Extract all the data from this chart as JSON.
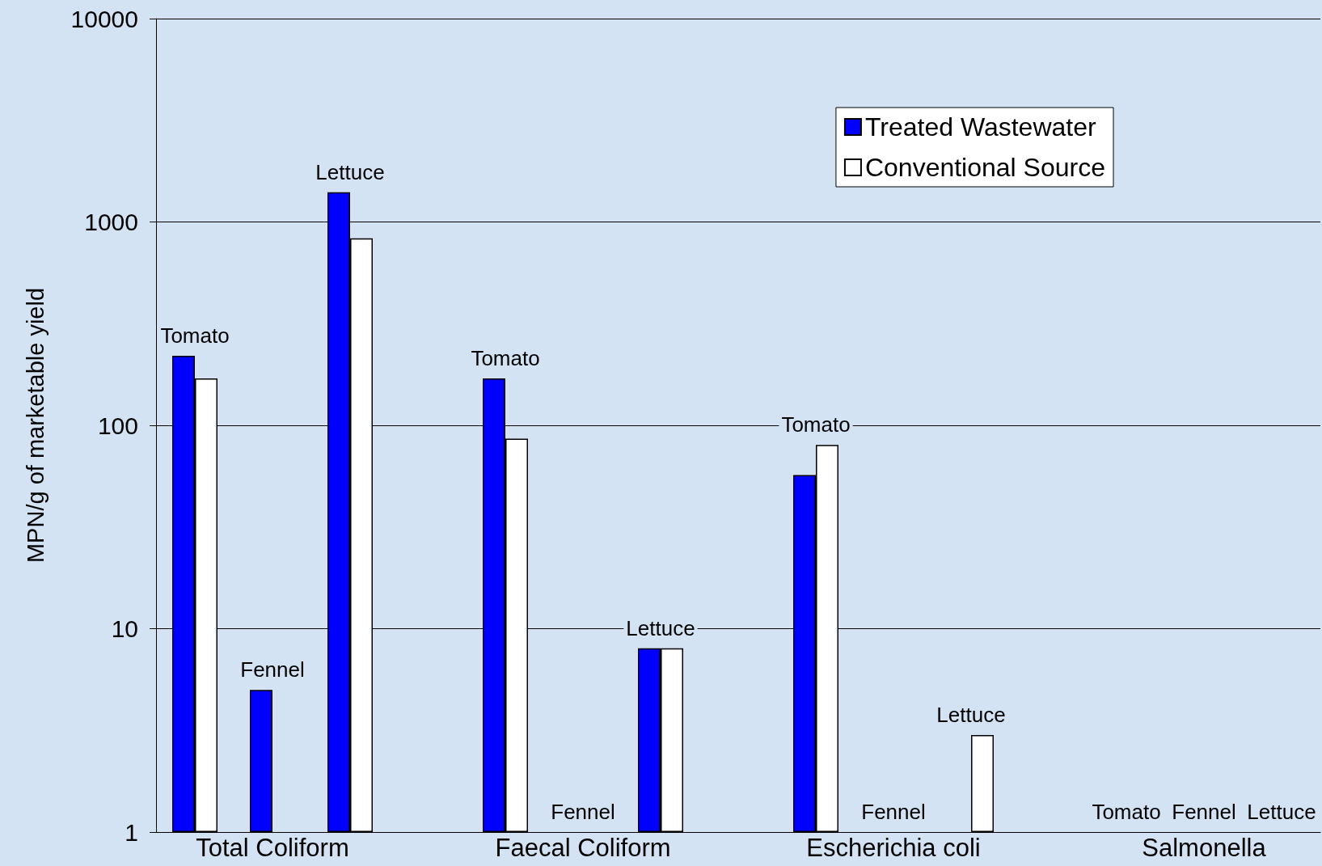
{
  "chart_data": {
    "type": "bar",
    "ylabel": "MPN/g of marketable yield",
    "categories": [
      "Tomato",
      "Fennel",
      "Lettuce",
      null,
      "Tomato",
      "Fennel",
      "Lettuce",
      null,
      "Tomato",
      "Fennel",
      "Lettuce",
      null,
      "Tomato",
      "Fennel",
      "Lettuce"
    ],
    "series": [
      {
        "name": "Treated Wastewater",
        "color": "#0000ff",
        "values": [
          220,
          5,
          1400,
          null,
          170,
          null,
          8,
          null,
          57,
          null,
          null,
          null,
          null,
          null,
          null
        ]
      },
      {
        "name": "Conventional Source",
        "color": "#ffffff",
        "values": [
          170,
          null,
          830,
          null,
          86,
          null,
          8,
          null,
          80,
          null,
          3,
          null,
          null,
          null,
          null
        ]
      }
    ],
    "annotations": [
      "Total Coliform",
      "Faecal Coliform",
      "Escherichia coli",
      "Salmonella"
    ],
    "log": true,
    "ylim": [
      1,
      10000
    ],
    "yticks": [
      1,
      10,
      100,
      1000,
      10000
    ],
    "grid": "y",
    "legend": "top right"
  }
}
